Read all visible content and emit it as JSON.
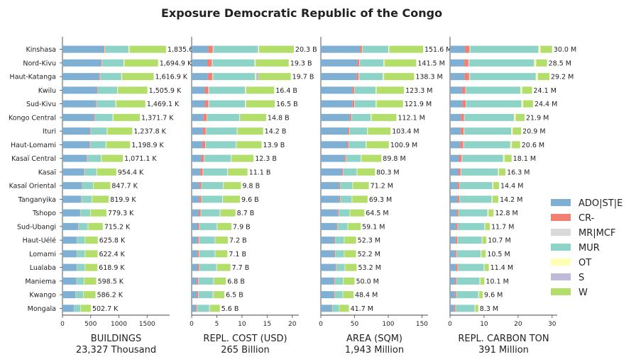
{
  "title": "Exposure Democratic Republic of the Congo",
  "categories": [
    "Kinshasa",
    "Nord-Kivu",
    "Haut-Katanga",
    "Kwilu",
    "Sud-Kivu",
    "Kongo Central",
    "Ituri",
    "Haut-Lomami",
    "Kasaï Central",
    "Kasaï",
    "Kasaï Oriental",
    "Tanganyika",
    "Tshopo",
    "Sud-Ubangi",
    "Haut-Uélé",
    "Lomami",
    "Lualaba",
    "Maniema",
    "Kwango",
    "Mongala"
  ],
  "legend": [
    {
      "name": "ADO|ST|E",
      "color": "#7fb0d4"
    },
    {
      "name": "CR-",
      "color": "#f28070"
    },
    {
      "name": "MR|MCF",
      "color": "#d9d9d9"
    },
    {
      "name": "MUR",
      "color": "#8dd3c7"
    },
    {
      "name": "OT",
      "color": "#ffffb3"
    },
    {
      "name": "S",
      "color": "#bebada"
    },
    {
      "name": "W",
      "color": "#b3de69"
    }
  ],
  "chart_data": [
    {
      "type": "bar",
      "orientation": "horizontal",
      "stacked": true,
      "xlabel": "BUILDINGS",
      "subtitle": "23,327 Thousand",
      "xlim": [
        0,
        1900
      ],
      "ticks": [
        0,
        500,
        1000,
        1500
      ],
      "labels": [
        "1,835.6",
        "1,694.9 K",
        "1,616.9 K",
        "1,505.9 K",
        "1,469.1 K",
        "1,371.7 K",
        "1,237.8 K",
        "1,198.9 K",
        "1,071.1 K",
        "954.4 K",
        "847.7 K",
        "819.9 K",
        "779.3 K",
        "715.2 K",
        "625.8 K",
        "622.4 K",
        "618.9 K",
        "598.5 K",
        "586.2 K",
        "502.7 K"
      ],
      "series": [
        {
          "name": "ADO|ST|E",
          "values": [
            730,
            680,
            650,
            610,
            590,
            560,
            490,
            480,
            430,
            380,
            340,
            330,
            310,
            280,
            250,
            250,
            250,
            240,
            230,
            200
          ]
        },
        {
          "name": "CR-",
          "values": [
            15,
            15,
            15,
            12,
            12,
            12,
            10,
            10,
            9,
            8,
            7,
            7,
            7,
            6,
            5,
            5,
            5,
            5,
            5,
            4
          ]
        },
        {
          "name": "MR|MCF",
          "values": [
            8,
            8,
            8,
            7,
            7,
            6,
            6,
            6,
            5,
            5,
            4,
            4,
            4,
            4,
            3,
            3,
            3,
            3,
            3,
            3
          ]
        },
        {
          "name": "MUR",
          "values": [
            420,
            380,
            370,
            340,
            330,
            310,
            280,
            270,
            240,
            210,
            190,
            180,
            170,
            160,
            140,
            140,
            140,
            130,
            130,
            110
          ]
        },
        {
          "name": "OT",
          "values": [
            15,
            15,
            15,
            14,
            13,
            12,
            11,
            11,
            10,
            9,
            8,
            8,
            7,
            7,
            6,
            6,
            6,
            6,
            5,
            5
          ]
        },
        {
          "name": "S",
          "values": [
            5,
            5,
            5,
            4,
            4,
            4,
            4,
            4,
            3,
            3,
            3,
            3,
            2,
            2,
            2,
            2,
            2,
            2,
            2,
            2
          ]
        },
        {
          "name": "W",
          "values": [
            642.6,
            591.9,
            553.9,
            518.9,
            513.1,
            467.7,
            436.8,
            417.9,
            374.1,
            339.4,
            295.7,
            287.9,
            279.3,
            256.2,
            219.8,
            216.4,
            212.9,
            212.5,
            211.2,
            178.7
          ]
        }
      ]
    },
    {
      "type": "bar",
      "orientation": "horizontal",
      "stacked": true,
      "xlabel": "REPL. COST (USD)",
      "subtitle": "265 Billion",
      "xlim": [
        0,
        21.3
      ],
      "ticks": [
        0,
        5,
        10,
        15,
        20
      ],
      "labels": [
        "20.3 B",
        "19.3 B",
        "19.7 B",
        "16.4 B",
        "16.5 B",
        "14.8 B",
        "14.2 B",
        "13.9 B",
        "12.3 B",
        "11.1 B",
        "9.8 B",
        "9.6 B",
        "8.7 B",
        "7.9 B",
        "7.2 B",
        "7.1 B",
        "7.7 B",
        "6.8 B",
        "6.5 B",
        "5.6 B"
      ],
      "series": [
        {
          "name": "ADO|ST|E",
          "values": [
            3.3,
            3.1,
            3.2,
            2.6,
            2.6,
            2.3,
            2.2,
            2.1,
            1.9,
            1.7,
            1.5,
            1.5,
            1.4,
            1.2,
            1.1,
            1.1,
            1.2,
            1.0,
            1.0,
            0.8
          ]
        },
        {
          "name": "CR-",
          "values": [
            0.9,
            0.9,
            0.9,
            0.7,
            0.7,
            0.7,
            0.6,
            0.6,
            0.5,
            0.5,
            0.4,
            0.4,
            0.4,
            0.3,
            0.3,
            0.3,
            0.3,
            0.3,
            0.3,
            0.2
          ]
        },
        {
          "name": "MR|MCF",
          "values": [
            0.2,
            0.2,
            0.2,
            0.2,
            0.2,
            0.1,
            0.1,
            0.1,
            0.1,
            0.1,
            0.1,
            0.1,
            0.1,
            0.1,
            0.1,
            0.1,
            0.1,
            0.1,
            0.1,
            0.1
          ]
        },
        {
          "name": "MUR",
          "values": [
            8.8,
            8.3,
            8.3,
            7.1,
            7.1,
            6.4,
            6.1,
            6.0,
            5.3,
            4.8,
            4.2,
            4.1,
            3.7,
            3.4,
            3.1,
            3.1,
            3.3,
            2.9,
            2.8,
            2.4
          ]
        },
        {
          "name": "OT",
          "values": [
            0.2,
            0.2,
            0.2,
            0.2,
            0.2,
            0.1,
            0.1,
            0.1,
            0.1,
            0.1,
            0.1,
            0.1,
            0.1,
            0.1,
            0.1,
            0.1,
            0.1,
            0.1,
            0.1,
            0.1
          ]
        },
        {
          "name": "S",
          "values": [
            0.1,
            0.1,
            0.5,
            0.1,
            0.1,
            0.1,
            0.1,
            0.1,
            0.1,
            0.1,
            0.1,
            0.1,
            0.1,
            0.1,
            0.1,
            0.1,
            0.1,
            0.1,
            0.1,
            0.1
          ]
        },
        {
          "name": "W",
          "values": [
            6.8,
            6.5,
            6.4,
            5.5,
            5.6,
            5.1,
            5.0,
            4.9,
            4.3,
            3.8,
            3.4,
            3.3,
            2.9,
            2.7,
            2.4,
            2.3,
            2.6,
            2.3,
            2.1,
            1.9
          ]
        }
      ]
    },
    {
      "type": "bar",
      "orientation": "horizontal",
      "stacked": true,
      "xlabel": "AREA (SQM)",
      "subtitle": "1,943 Million",
      "xlim": [
        0,
        159
      ],
      "ticks": [
        0,
        50,
        100,
        150
      ],
      "labels": [
        "151.6 M",
        "141.5 M",
        "138.3 M",
        "123.3 M",
        "121.9 M",
        "112.1 M",
        "103.4 M",
        "100.9 M",
        "89.8 M",
        "80.3 M",
        "71.2 M",
        "69.3 M",
        "64.5 M",
        "59.1 M",
        "52.3 M",
        "52.2 M",
        "53.2 M",
        "50.0 M",
        "48.4 M",
        "41.7 M"
      ],
      "series": [
        {
          "name": "ADO|ST|E",
          "values": [
            58,
            54,
            53,
            47,
            47,
            43,
            40,
            39,
            35,
            31,
            27,
            27,
            25,
            23,
            20,
            20,
            21,
            19,
            19,
            16
          ]
        },
        {
          "name": "CR-",
          "values": [
            3,
            3,
            3,
            2.5,
            2.5,
            2.2,
            2,
            2,
            1.8,
            1.6,
            1.4,
            1.4,
            1.3,
            1.2,
            1,
            1,
            1.1,
            1,
            1,
            0.8
          ]
        },
        {
          "name": "MR|MCF",
          "values": [
            1,
            1,
            1,
            0.9,
            0.9,
            0.8,
            0.7,
            0.7,
            0.6,
            0.6,
            0.5,
            0.5,
            0.5,
            0.4,
            0.4,
            0.4,
            0.4,
            0.4,
            0.3,
            0.3
          ]
        },
        {
          "name": "MUR",
          "values": [
            38,
            35,
            35,
            31,
            31,
            28,
            26,
            25,
            22,
            20,
            18,
            17,
            16,
            15,
            13,
            13,
            13,
            12.5,
            12,
            10
          ]
        },
        {
          "name": "OT",
          "values": [
            1.5,
            1.4,
            1.4,
            1.2,
            1.2,
            1.1,
            1,
            1,
            0.9,
            0.8,
            0.7,
            0.7,
            0.6,
            0.6,
            0.5,
            0.5,
            0.5,
            0.5,
            0.5,
            0.4
          ]
        },
        {
          "name": "S",
          "values": [
            0.5,
            0.5,
            0.5,
            0.4,
            0.4,
            0.4,
            0.3,
            0.3,
            0.3,
            0.3,
            0.2,
            0.2,
            0.2,
            0.2,
            0.2,
            0.2,
            0.2,
            0.2,
            0.2,
            0.1
          ]
        },
        {
          "name": "W",
          "values": [
            49.6,
            46.6,
            44.4,
            40.3,
            38.9,
            36.6,
            33.4,
            32.9,
            29.2,
            26,
            23.4,
            22.5,
            20.9,
            18.7,
            17.2,
            17.1,
            17,
            16.4,
            15.4,
            14.1
          ]
        }
      ]
    },
    {
      "type": "bar",
      "orientation": "horizontal",
      "stacked": true,
      "xlabel": "REPL. CARBON TON",
      "subtitle": "391 Million",
      "xlim": [
        0,
        31.5
      ],
      "ticks": [
        0,
        10,
        20,
        30
      ],
      "labels": [
        "30.0 M",
        "28.5 M",
        "29.2 M",
        "24.1 M",
        "24.4 M",
        "21.9 M",
        "20.9 M",
        "20.6 M",
        "18.1 M",
        "16.3 M",
        "14.4 M",
        "14.2 M",
        "12.8 M",
        "11.7 M",
        "10.7 M",
        "10.5 M",
        "11.4 M",
        "10.1 M",
        "9.6 M",
        "8.3 M"
      ],
      "series": [
        {
          "name": "ADO|ST|E",
          "values": [
            4.4,
            4.2,
            4.3,
            3.5,
            3.6,
            3.2,
            3.1,
            3.0,
            2.6,
            2.4,
            2.1,
            2.1,
            1.9,
            1.7,
            1.6,
            1.5,
            1.7,
            1.5,
            1.4,
            1.2
          ]
        },
        {
          "name": "CR-",
          "values": [
            1.3,
            1.2,
            1.3,
            1.0,
            1.0,
            0.9,
            0.9,
            0.9,
            0.8,
            0.7,
            0.6,
            0.6,
            0.5,
            0.5,
            0.5,
            0.4,
            0.5,
            0.4,
            0.4,
            0.4
          ]
        },
        {
          "name": "MR|MCF",
          "values": [
            0.3,
            0.3,
            0.3,
            0.2,
            0.2,
            0.2,
            0.2,
            0.2,
            0.2,
            0.2,
            0.1,
            0.1,
            0.1,
            0.1,
            0.1,
            0.1,
            0.1,
            0.1,
            0.1,
            0.1
          ]
        },
        {
          "name": "MUR",
          "values": [
            20.0,
            19.0,
            19.3,
            16.0,
            16.2,
            14.5,
            13.8,
            13.6,
            12.0,
            10.8,
            9.6,
            9.4,
            8.5,
            7.8,
            7.1,
            7.0,
            7.6,
            6.7,
            6.4,
            5.5
          ]
        },
        {
          "name": "OT",
          "values": [
            0.6,
            0.6,
            0.6,
            0.5,
            0.5,
            0.5,
            0.4,
            0.4,
            0.4,
            0.3,
            0.3,
            0.3,
            0.3,
            0.2,
            0.2,
            0.2,
            0.2,
            0.2,
            0.2,
            0.2
          ]
        },
        {
          "name": "S",
          "values": [
            0.1,
            0.1,
            0.1,
            0.1,
            0.1,
            0.1,
            0.1,
            0.1,
            0.1,
            0.1,
            0.1,
            0.1,
            0.1,
            0.1,
            0.1,
            0.1,
            0.1,
            0.1,
            0.1,
            0.1
          ]
        },
        {
          "name": "W",
          "values": [
            3.3,
            3.1,
            3.3,
            2.8,
            2.8,
            2.5,
            2.4,
            2.4,
            2.0,
            1.8,
            1.6,
            1.6,
            1.4,
            1.3,
            1.1,
            1.2,
            1.2,
            1.1,
            1.0,
            0.8
          ]
        }
      ]
    }
  ]
}
